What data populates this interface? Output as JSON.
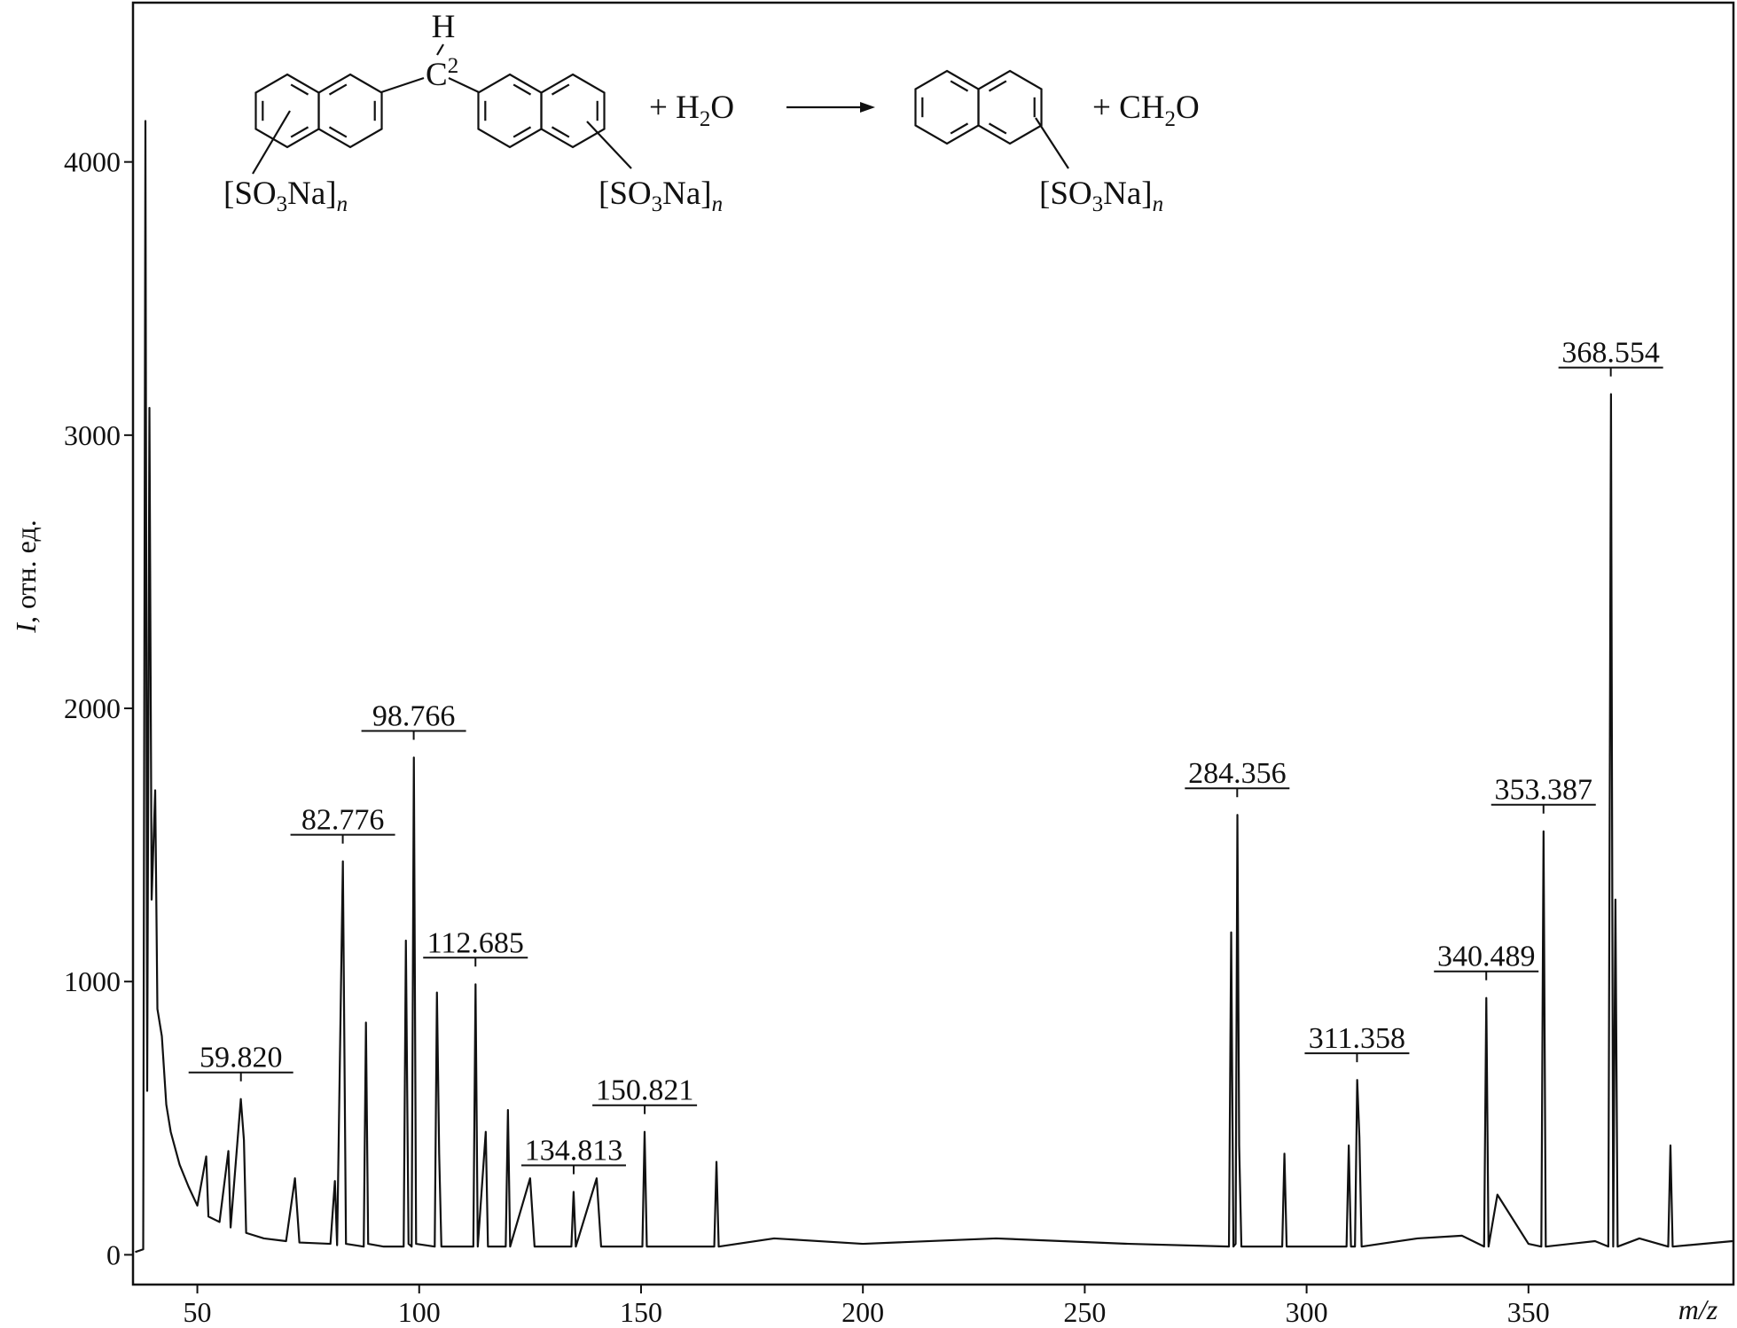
{
  "chart_data": {
    "type": "line",
    "x_label": "m/z",
    "y_label": {
      "symbol": "I",
      "unit": ", отн. ед."
    },
    "color": "#111111",
    "x": [
      36,
      37.8,
      38.3,
      38.7,
      39.2,
      39.7,
      40.5,
      41,
      42,
      43,
      44,
      46,
      48,
      50,
      52,
      52.5,
      55,
      57,
      57.5,
      59.8,
      60.5,
      61,
      65,
      70,
      72,
      73,
      80,
      81,
      81.5,
      82.8,
      83.5,
      87.5,
      88,
      88.5,
      92,
      96.5,
      97,
      97.6,
      98.3,
      98.8,
      99.3,
      103.5,
      104,
      104.5,
      105,
      112.2,
      112.7,
      113.2,
      115,
      115.5,
      119.5,
      120,
      120.5,
      125,
      126,
      134.3,
      134.8,
      135.3,
      140,
      141,
      150.3,
      150.8,
      151.3,
      160,
      166.5,
      167,
      167.5,
      180,
      200,
      230,
      260,
      282.5,
      283,
      283.5,
      284,
      284.4,
      284.8,
      285.3,
      290,
      294.5,
      295,
      295.5,
      305,
      309,
      309.5,
      310,
      310.9,
      311.4,
      311.9,
      312.4,
      325,
      335,
      340,
      340.5,
      341,
      343,
      350,
      352.9,
      353.4,
      353.9,
      365,
      368,
      368.6,
      369.1,
      369.6,
      370.1,
      375,
      381.5,
      382,
      382.5,
      396
    ],
    "values": [
      10,
      20,
      4150,
      600,
      3100,
      1300,
      1700,
      900,
      800,
      550,
      450,
      330,
      250,
      180,
      360,
      140,
      120,
      380,
      100,
      570,
      420,
      80,
      60,
      50,
      280,
      45,
      40,
      270,
      35,
      1440,
      40,
      30,
      850,
      40,
      30,
      30,
      1150,
      40,
      30,
      1820,
      40,
      30,
      960,
      370,
      30,
      30,
      990,
      30,
      450,
      30,
      30,
      530,
      30,
      280,
      30,
      30,
      230,
      30,
      280,
      30,
      30,
      450,
      30,
      30,
      30,
      340,
      30,
      60,
      40,
      60,
      40,
      30,
      1180,
      30,
      40,
      1610,
      400,
      30,
      30,
      30,
      370,
      30,
      30,
      30,
      400,
      30,
      30,
      640,
      430,
      30,
      60,
      70,
      30,
      940,
      30,
      220,
      40,
      30,
      1550,
      30,
      50,
      30,
      3150,
      30,
      1300,
      30,
      60,
      30,
      400,
      30,
      50
    ],
    "peaks": {
      "x": [
        59.82,
        82.776,
        98.766,
        112.685,
        134.813,
        150.821,
        284.356,
        311.358,
        340.489,
        353.387,
        368.554
      ],
      "intensity": [
        570,
        1440,
        1820,
        990,
        230,
        450,
        1610,
        640,
        940,
        1550,
        3150
      ],
      "labels": [
        "59.820",
        "82.776",
        "98.766",
        "112.685",
        "134.813",
        "150.821",
        "284.356",
        "311.358",
        "340.489",
        "353.387",
        "368.554"
      ]
    },
    "xlim": [
      35.5,
      396.2
    ],
    "ylim": [
      -109,
      4583
    ],
    "xticks": [
      50,
      100,
      150,
      200,
      250,
      300,
      350
    ],
    "yticks": [
      0,
      1000,
      2000,
      3000,
      4000
    ]
  },
  "scheme": {
    "h": "H",
    "c": "C",
    "c_sup": "2",
    "plus_water": {
      "a": "+ H",
      "b": "2",
      "c": "O"
    },
    "plus_formaldehyde": {
      "a": "+ CH",
      "b": "2",
      "c": "O"
    },
    "substituents": [
      {
        "a": "[SO",
        "b": "3",
        "c": "Na]",
        "d": "n"
      },
      {
        "a": "[SO",
        "b": "3",
        "c": "Na]",
        "d": "n"
      },
      {
        "a": "[SO",
        "b": "3",
        "c": "Na]",
        "d": "n"
      }
    ]
  }
}
